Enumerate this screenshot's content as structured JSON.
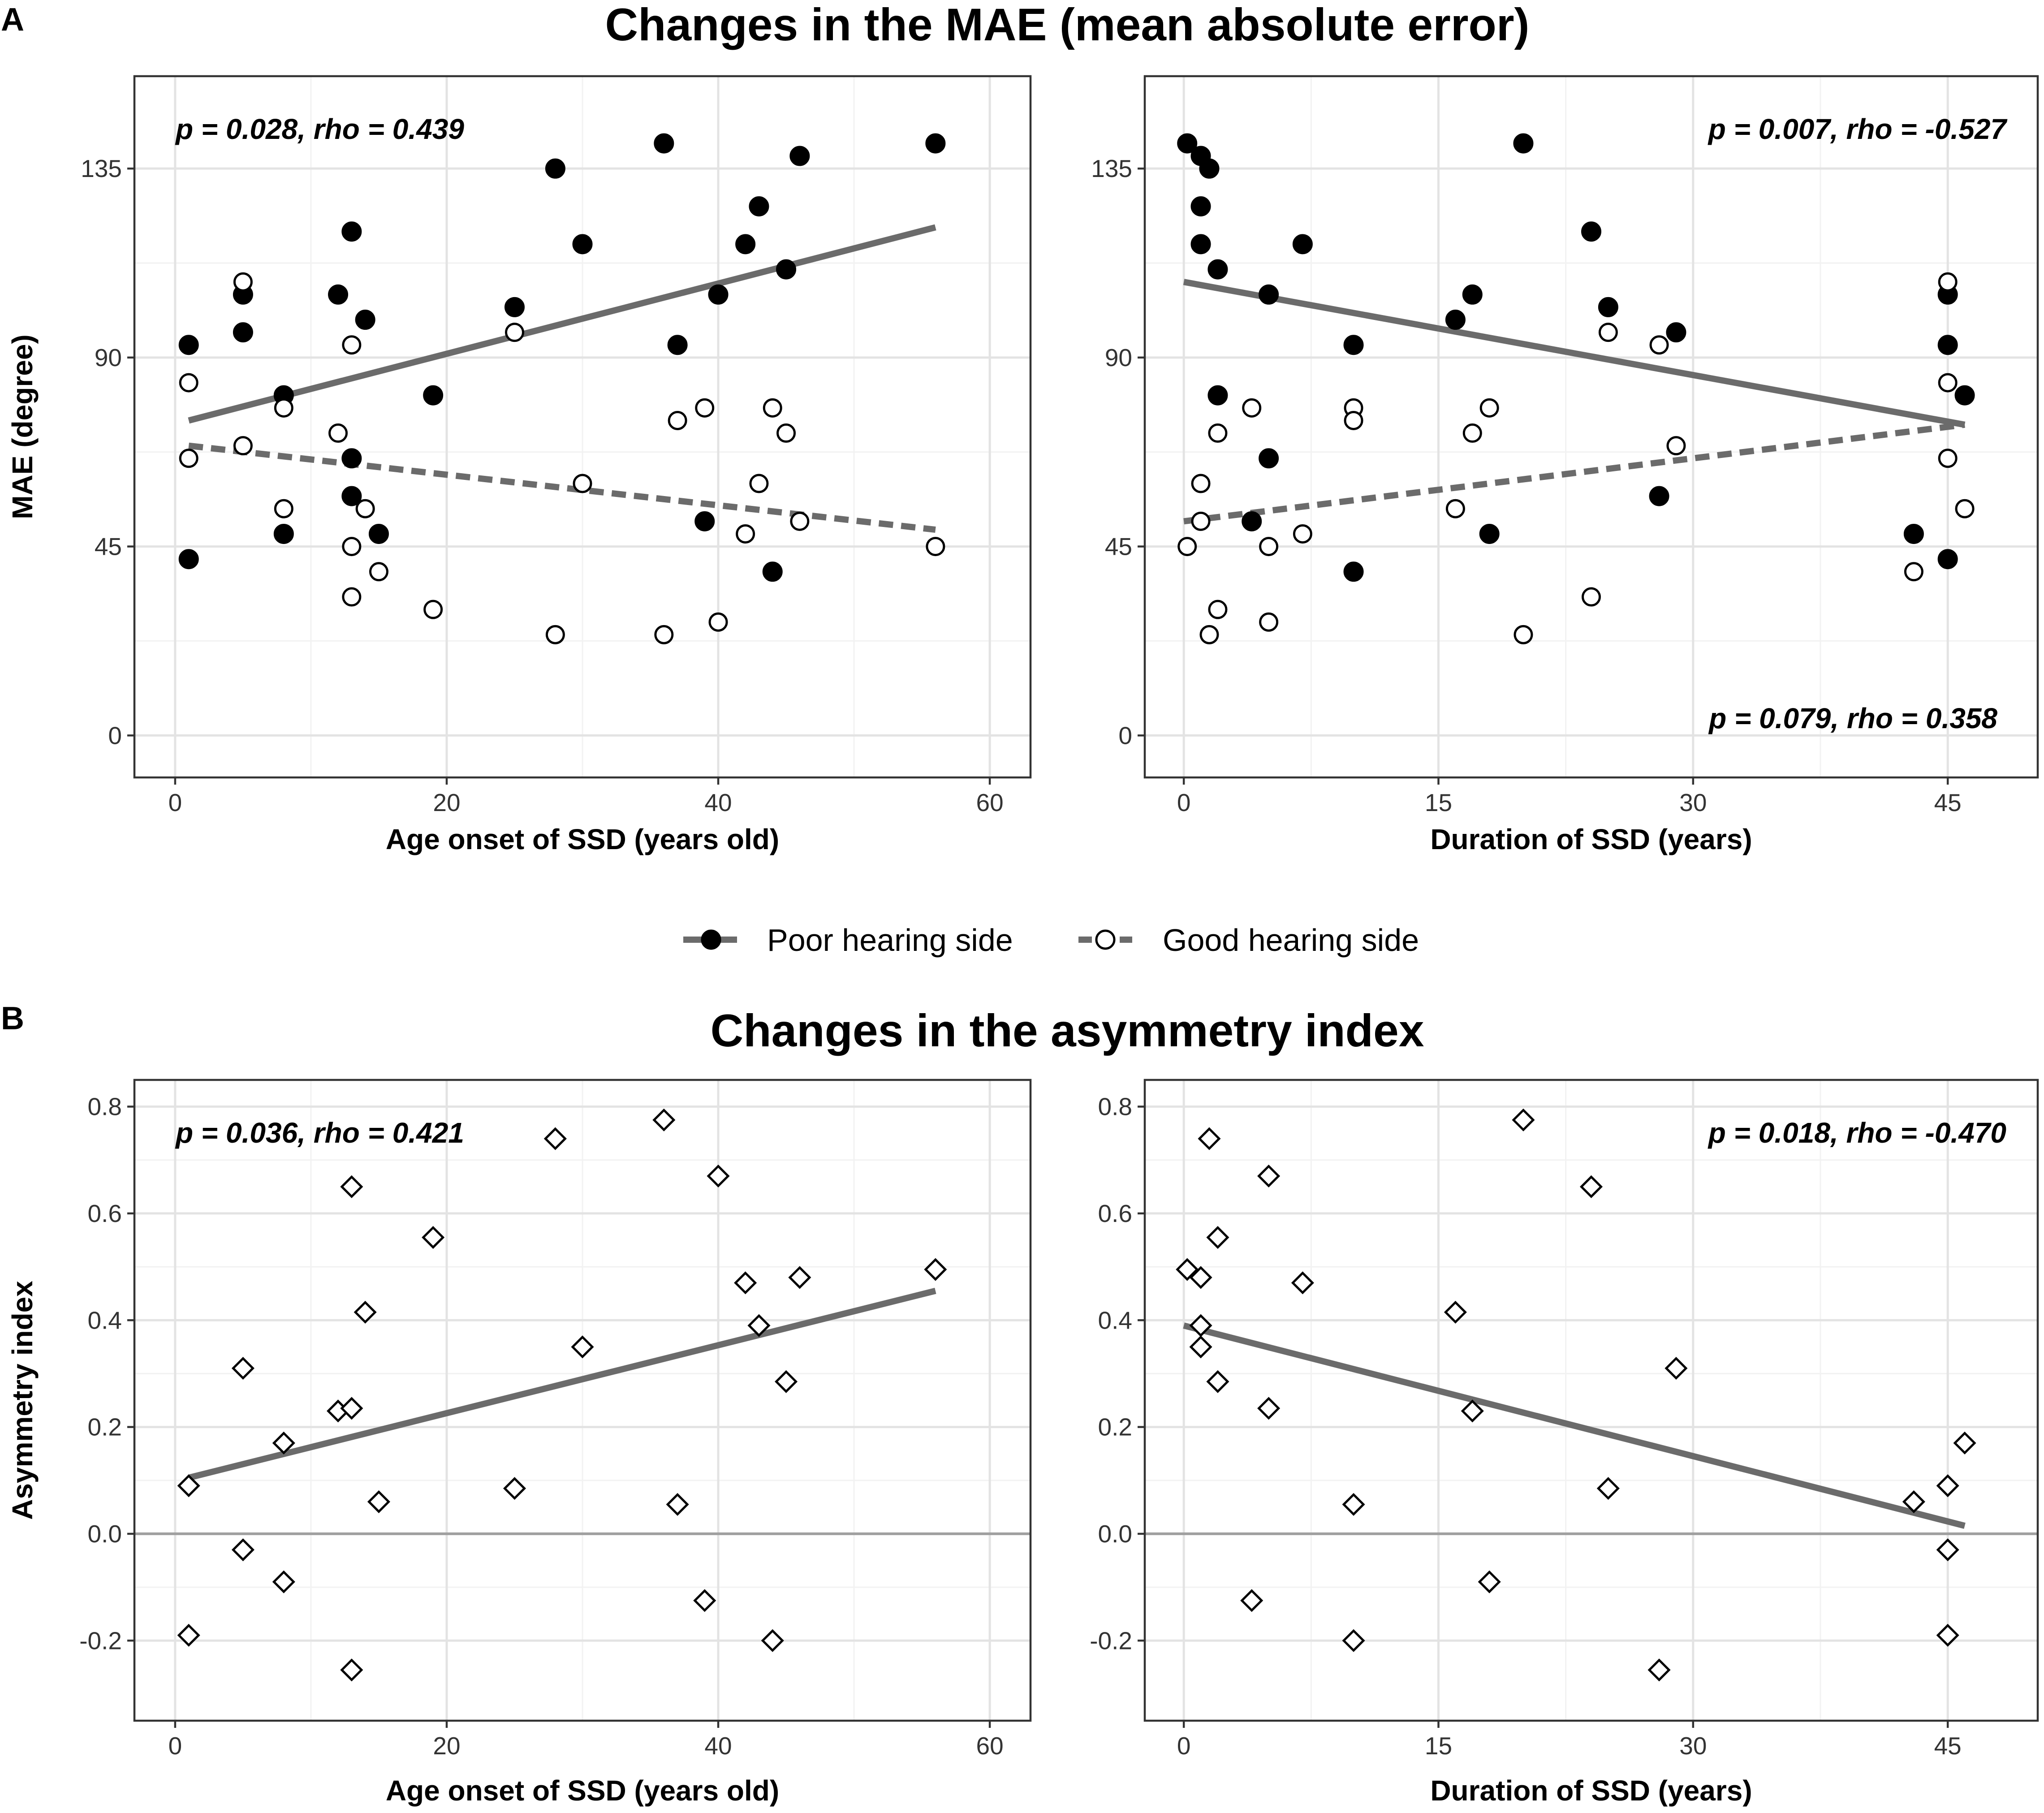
{
  "panels": {
    "a_letter": "A",
    "b_letter": "B"
  },
  "titles": {
    "a": "Changes in the MAE (mean absolute error)",
    "b": "Changes in the asymmetry index"
  },
  "legend": {
    "poor": "Poor hearing side",
    "good": "Good hearing side"
  },
  "colors": {
    "points": "#000000",
    "fit_line": "#6b6b6b",
    "zero_line": "#a0a0a0",
    "grid": "#e3e3e3",
    "frame": "#333333"
  },
  "chart_data": [
    {
      "id": "a-left",
      "type": "scatter",
      "title": "Changes in the MAE (mean absolute error)",
      "xlabel": "Age onset of SSD (years old)",
      "ylabel": "MAE (degree)",
      "xlim": [
        -3,
        63
      ],
      "ylim": [
        -10,
        157
      ],
      "xticks": [
        0,
        20,
        40,
        60
      ],
      "yticks": [
        0,
        45,
        90,
        135
      ],
      "grid": true,
      "annotations": [
        {
          "text": "p = 0.028, rho = 0.439",
          "position": "top-left"
        }
      ],
      "series": [
        {
          "name": "Poor hearing side",
          "marker": "filled-circle",
          "points": [
            [
              1,
              93
            ],
            [
              1,
              42
            ],
            [
              5,
              105
            ],
            [
              5,
              96
            ],
            [
              8,
              81
            ],
            [
              8,
              48
            ],
            [
              12,
              105
            ],
            [
              13,
              120
            ],
            [
              13,
              66
            ],
            [
              13,
              57
            ],
            [
              14,
              99
            ],
            [
              15,
              48
            ],
            [
              19,
              81
            ],
            [
              25,
              102
            ],
            [
              28,
              135
            ],
            [
              30,
              117
            ],
            [
              36,
              141
            ],
            [
              37,
              93
            ],
            [
              39,
              51
            ],
            [
              40,
              105
            ],
            [
              42,
              117
            ],
            [
              43,
              126
            ],
            [
              44,
              39
            ],
            [
              45,
              111
            ],
            [
              46,
              138
            ],
            [
              56,
              141
            ]
          ],
          "fit": {
            "x": [
              1,
              56
            ],
            "y": [
              75,
              121
            ],
            "style": "solid"
          }
        },
        {
          "name": "Good hearing side",
          "marker": "open-circle",
          "points": [
            [
              1,
              84
            ],
            [
              1,
              66
            ],
            [
              5,
              108
            ],
            [
              5,
              69
            ],
            [
              8,
              78
            ],
            [
              8,
              54
            ],
            [
              12,
              72
            ],
            [
              13,
              93
            ],
            [
              13,
              45
            ],
            [
              13,
              33
            ],
            [
              14,
              54
            ],
            [
              15,
              39
            ],
            [
              19,
              30
            ],
            [
              25,
              96
            ],
            [
              28,
              24
            ],
            [
              30,
              60
            ],
            [
              36,
              24
            ],
            [
              37,
              75
            ],
            [
              39,
              78
            ],
            [
              40,
              27
            ],
            [
              42,
              48
            ],
            [
              43,
              60
            ],
            [
              44,
              78
            ],
            [
              45,
              72
            ],
            [
              46,
              51
            ],
            [
              56,
              45
            ]
          ],
          "fit": {
            "x": [
              1,
              56
            ],
            "y": [
              69,
              49
            ],
            "style": "dashed"
          }
        }
      ]
    },
    {
      "id": "a-right",
      "type": "scatter",
      "xlabel": "Duration of SSD (years)",
      "ylabel": "MAE (degree)",
      "xlim": [
        -2.3,
        50.3
      ],
      "ylim": [
        -10,
        157
      ],
      "xticks": [
        0,
        15,
        30,
        45
      ],
      "yticks": [
        0,
        45,
        90,
        135
      ],
      "grid": true,
      "annotations": [
        {
          "text": "p = 0.007, rho = -0.527",
          "position": "top-right"
        },
        {
          "text": "p = 0.079, rho = 0.358",
          "position": "bottom-right"
        }
      ],
      "series": [
        {
          "name": "Poor hearing side",
          "marker": "filled-circle",
          "points": [
            [
              0.2,
              141
            ],
            [
              1,
              138
            ],
            [
              1,
              126
            ],
            [
              1,
              117
            ],
            [
              1.5,
              135
            ],
            [
              2,
              111
            ],
            [
              2,
              81
            ],
            [
              5,
              105
            ],
            [
              5,
              66
            ],
            [
              4,
              51
            ],
            [
              7,
              117
            ],
            [
              10,
              93
            ],
            [
              10,
              39
            ],
            [
              16,
              99
            ],
            [
              17,
              105
            ],
            [
              18,
              48
            ],
            [
              20,
              141
            ],
            [
              24,
              120
            ],
            [
              25,
              102
            ],
            [
              28,
              57
            ],
            [
              29,
              96
            ],
            [
              43,
              48
            ],
            [
              45,
              105
            ],
            [
              45,
              93
            ],
            [
              45,
              42
            ],
            [
              46,
              81
            ]
          ],
          "fit": {
            "x": [
              0,
              46
            ],
            "y": [
              108,
              74
            ],
            "style": "solid"
          }
        },
        {
          "name": "Good hearing side",
          "marker": "open-circle",
          "points": [
            [
              0.2,
              45
            ],
            [
              1,
              60
            ],
            [
              1,
              51
            ],
            [
              1.5,
              24
            ],
            [
              2,
              72
            ],
            [
              2,
              30
            ],
            [
              4,
              78
            ],
            [
              5,
              45
            ],
            [
              5,
              27
            ],
            [
              7,
              48
            ],
            [
              10,
              78
            ],
            [
              10,
              75
            ],
            [
              16,
              54
            ],
            [
              17,
              72
            ],
            [
              18,
              78
            ],
            [
              20,
              24
            ],
            [
              24,
              33
            ],
            [
              25,
              96
            ],
            [
              28,
              93
            ],
            [
              29,
              69
            ],
            [
              43,
              39
            ],
            [
              45,
              108
            ],
            [
              45,
              84
            ],
            [
              45,
              66
            ],
            [
              46,
              54
            ]
          ],
          "fit": {
            "x": [
              0,
              46
            ],
            "y": [
              51,
              74
            ],
            "style": "dashed"
          }
        }
      ]
    },
    {
      "id": "b-left",
      "type": "scatter",
      "title": "Changes in the asymmetry index",
      "xlabel": "Age onset of SSD (years old)",
      "ylabel": "Asymmetry index",
      "xlim": [
        -3,
        63
      ],
      "ylim": [
        -0.35,
        0.85
      ],
      "xticks": [
        0,
        20,
        40,
        60
      ],
      "yticks": [
        -0.2,
        0.0,
        0.2,
        0.4,
        0.6,
        0.8
      ],
      "ytick_labels": [
        "-0.2",
        "0.0",
        "0.2",
        "0.4",
        "0.6",
        "0.8"
      ],
      "grid": true,
      "zero_line": true,
      "annotations": [
        {
          "text": "p = 0.036, rho = 0.421",
          "position": "top-left"
        }
      ],
      "series": [
        {
          "name": "Asymmetry index",
          "marker": "open-diamond",
          "points": [
            [
              1,
              0.09
            ],
            [
              1,
              -0.19
            ],
            [
              5,
              0.31
            ],
            [
              5,
              -0.03
            ],
            [
              8,
              0.17
            ],
            [
              8,
              -0.09
            ],
            [
              12,
              0.23
            ],
            [
              13,
              0.235
            ],
            [
              13,
              0.65
            ],
            [
              13,
              -0.255
            ],
            [
              14,
              0.415
            ],
            [
              15,
              0.06
            ],
            [
              19,
              0.555
            ],
            [
              25,
              0.085
            ],
            [
              28,
              0.74
            ],
            [
              30,
              0.35
            ],
            [
              36,
              0.775
            ],
            [
              37,
              0.055
            ],
            [
              39,
              -0.125
            ],
            [
              40,
              0.67
            ],
            [
              42,
              0.47
            ],
            [
              43,
              0.39
            ],
            [
              44,
              -0.2
            ],
            [
              45,
              0.285
            ],
            [
              46,
              0.48
            ],
            [
              56,
              0.495
            ]
          ],
          "fit": {
            "x": [
              1,
              56
            ],
            "y": [
              0.105,
              0.455
            ],
            "style": "solid"
          }
        }
      ]
    },
    {
      "id": "b-right",
      "type": "scatter",
      "xlabel": "Duration of SSD (years)",
      "ylabel": "Asymmetry index",
      "xlim": [
        -2.3,
        50.3
      ],
      "ylim": [
        -0.35,
        0.85
      ],
      "xticks": [
        0,
        15,
        30,
        45
      ],
      "yticks": [
        -0.2,
        0.0,
        0.2,
        0.4,
        0.6,
        0.8
      ],
      "ytick_labels": [
        "-0.2",
        "0.0",
        "0.2",
        "0.4",
        "0.6",
        "0.8"
      ],
      "grid": true,
      "zero_line": true,
      "annotations": [
        {
          "text": "p = 0.018, rho = -0.470",
          "position": "top-right"
        }
      ],
      "series": [
        {
          "name": "Asymmetry index",
          "marker": "open-diamond",
          "points": [
            [
              0.2,
              0.495
            ],
            [
              1,
              0.48
            ],
            [
              1,
              0.39
            ],
            [
              1,
              0.35
            ],
            [
              1.5,
              0.74
            ],
            [
              2,
              0.555
            ],
            [
              2,
              0.285
            ],
            [
              4,
              -0.125
            ],
            [
              5,
              0.67
            ],
            [
              5,
              0.235
            ],
            [
              7,
              0.47
            ],
            [
              10,
              0.055
            ],
            [
              10,
              -0.2
            ],
            [
              16,
              0.415
            ],
            [
              17,
              0.23
            ],
            [
              18,
              -0.09
            ],
            [
              20,
              0.775
            ],
            [
              24,
              0.65
            ],
            [
              25,
              0.085
            ],
            [
              28,
              -0.255
            ],
            [
              29,
              0.31
            ],
            [
              43,
              0.06
            ],
            [
              45,
              0.09
            ],
            [
              45,
              -0.03
            ],
            [
              45,
              -0.19
            ],
            [
              46,
              0.17
            ]
          ],
          "fit": {
            "x": [
              0,
              46
            ],
            "y": [
              0.39,
              0.015
            ],
            "style": "solid"
          }
        }
      ]
    }
  ]
}
